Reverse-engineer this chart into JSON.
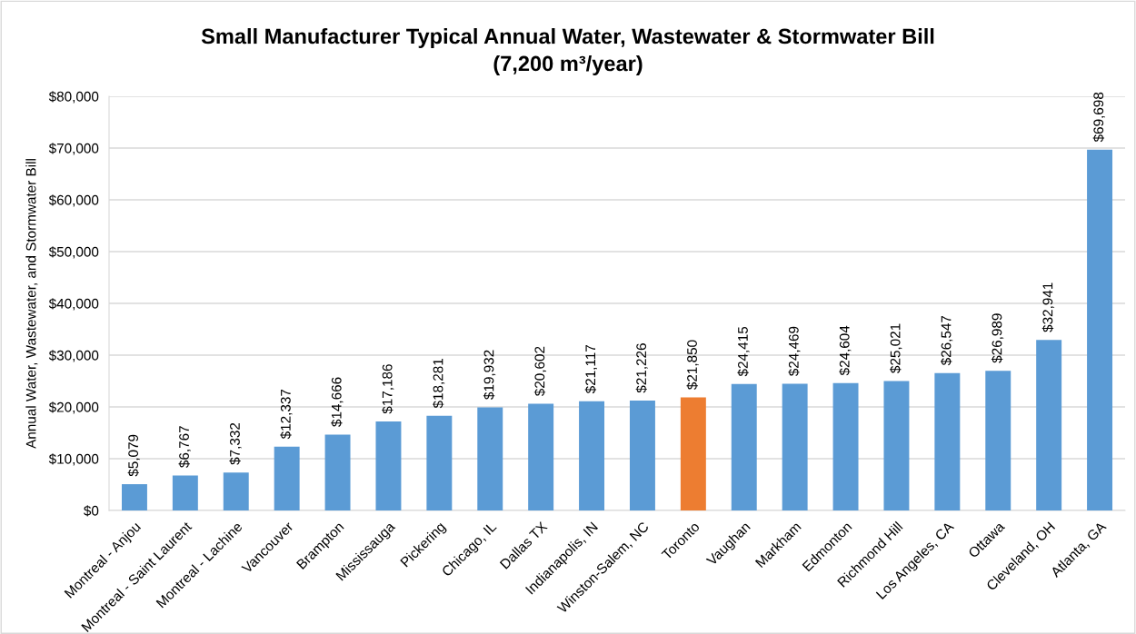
{
  "chart_data": {
    "type": "bar",
    "title": "Small Manufacturer Typical Annual Water, Wastewater & Stormwater Bill",
    "subtitle": "(7,200 m³/year)",
    "ylabel": "Annual Water, Wastewater, and Stormwater Bill",
    "categories": [
      "Montreal - Anjou",
      "Montreal - Saint Laurent",
      "Montreal - Lachine",
      "Vancouver",
      "Brampton",
      "Mississauga",
      "Pickering",
      "Chicago, IL",
      "Dallas TX",
      "Indianapolis, IN",
      "Winston-Salem, NC",
      "Toronto",
      "Vaughan",
      "Markham",
      "Edmonton",
      "Richmond Hill",
      "Los Angeles, CA",
      "Ottawa",
      "Cleveland, OH",
      "Atlanta, GA"
    ],
    "values": [
      5079,
      6767,
      7332,
      12337,
      14666,
      17186,
      18281,
      19932,
      20602,
      21117,
      21226,
      21850,
      24415,
      24469,
      24604,
      25021,
      26547,
      26989,
      32941,
      69698
    ],
    "value_labels": [
      "$5,079",
      "$6,767",
      "$7,332",
      "$12,337",
      "$14,666",
      "$17,186",
      "$18,281",
      "$19,932",
      "$20,602",
      "$21,117",
      "$21,226",
      "$21,850",
      "$24,415",
      "$24,469",
      "$24,604",
      "$25,021",
      "$26,547",
      "$26,989",
      "$32,941",
      "$69,698"
    ],
    "colors": [
      "#5b9bd5",
      "#5b9bd5",
      "#5b9bd5",
      "#5b9bd5",
      "#5b9bd5",
      "#5b9bd5",
      "#5b9bd5",
      "#5b9bd5",
      "#5b9bd5",
      "#5b9bd5",
      "#5b9bd5",
      "#ed7d31",
      "#5b9bd5",
      "#5b9bd5",
      "#5b9bd5",
      "#5b9bd5",
      "#5b9bd5",
      "#5b9bd5",
      "#5b9bd5",
      "#5b9bd5"
    ],
    "ylim": [
      0,
      80000
    ],
    "yticks": [
      {
        "value": 0,
        "label": "$0"
      },
      {
        "value": 10000,
        "label": "$10,000"
      },
      {
        "value": 20000,
        "label": "$20,000"
      },
      {
        "value": 30000,
        "label": "$30,000"
      },
      {
        "value": 40000,
        "label": "$40,000"
      },
      {
        "value": 50000,
        "label": "$50,000"
      },
      {
        "value": 60000,
        "label": "$60,000"
      },
      {
        "value": 70000,
        "label": "$70,000"
      },
      {
        "value": 80000,
        "label": "$80,000"
      }
    ],
    "grid": "y",
    "legend": false
  }
}
